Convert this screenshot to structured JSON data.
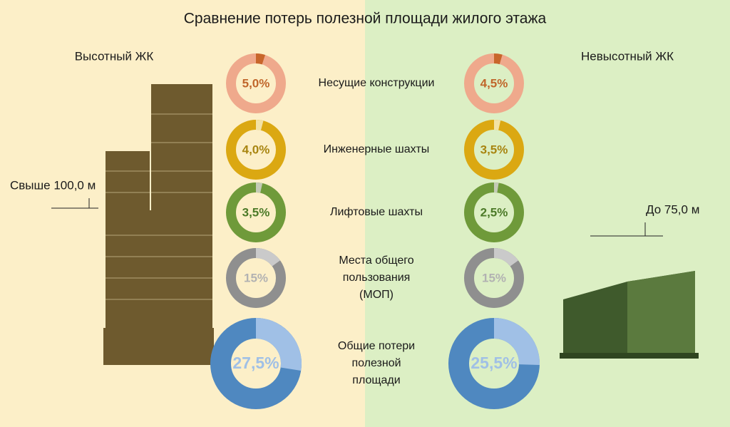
{
  "title": "Сравнение потерь полезной площади жилого этажа",
  "left_label": "Высотный ЖК",
  "right_label": "Невысотный ЖК",
  "left_height": "Свыше 100,0 м",
  "right_height": "До 75,0 м",
  "rows": [
    {
      "label": [
        "Несущие конструкции"
      ],
      "color": "#efa98c",
      "accent": "#c8662b",
      "text_color": "#c0662b",
      "values": [
        5.0,
        4.5
      ],
      "value_labels": [
        "5,0%",
        "4,5%"
      ]
    },
    {
      "label": [
        "Инженерные шахты"
      ],
      "color": "#dba812",
      "accent": "#f3e2a6",
      "text_color": "#a88510",
      "values": [
        4.0,
        3.5
      ],
      "value_labels": [
        "4,0%",
        "3,5%"
      ]
    },
    {
      "label": [
        "Лифтовые шахты"
      ],
      "color": "#6f9a3a",
      "accent": "#c4cbb6",
      "text_color": "#4c7a28",
      "values": [
        3.5,
        2.5
      ],
      "value_labels": [
        "3,5%",
        "2,5%"
      ]
    },
    {
      "label": [
        "Места общего",
        "пользования",
        "(МОП)"
      ],
      "color": "#8f8f8f",
      "accent": "#cacaca",
      "text_color": "#b2b2b2",
      "values": [
        15,
        15
      ],
      "value_labels": [
        "15%",
        "15%"
      ]
    },
    {
      "label": [
        "Общие потери",
        "полезной",
        "площади"
      ],
      "color": "#4f88c0",
      "accent": "#a0c0e6",
      "text_color": "#a0c0e6",
      "values": [
        27.5,
        25.5
      ],
      "value_labels": [
        "27,5%",
        "25,5%"
      ]
    }
  ]
}
